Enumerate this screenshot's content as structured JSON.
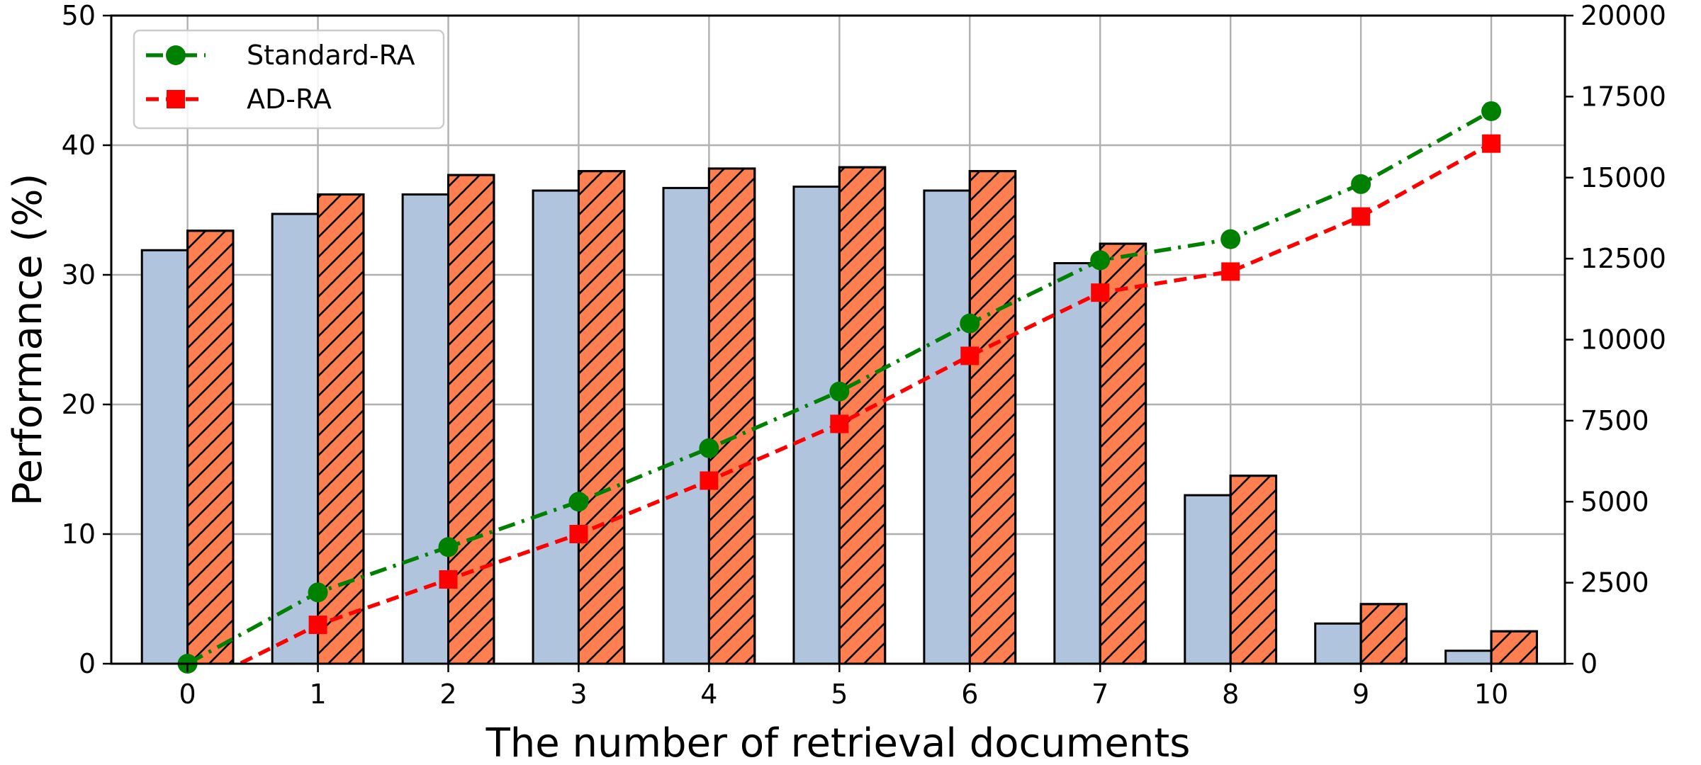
{
  "chart_data": {
    "type": "bar",
    "xlabel": "The number of retrieval documents",
    "ylabel": "Performance (%)",
    "categories": [
      "0",
      "1",
      "2",
      "3",
      "4",
      "5",
      "6",
      "7",
      "8",
      "9",
      "10"
    ],
    "ylim": [
      0,
      50
    ],
    "y_ticks": [
      "0",
      "10",
      "20",
      "30",
      "40",
      "50"
    ],
    "y2lim": [
      0,
      20000
    ],
    "y2_ticks": [
      "0",
      "2500",
      "5000",
      "7500",
      "10000",
      "12500",
      "15000",
      "17500",
      "20000"
    ],
    "grid": true,
    "legend_position": "top-left",
    "bar_series": [
      {
        "values": [
          31.9,
          34.7,
          36.2,
          36.5,
          36.7,
          36.8,
          36.5,
          30.9,
          13.0,
          3.1,
          1.0
        ],
        "color": "#b0c4de",
        "hatch": false
      },
      {
        "values": [
          33.4,
          36.2,
          37.7,
          38.0,
          38.2,
          38.3,
          38.0,
          32.4,
          14.5,
          4.6,
          2.5
        ],
        "color": "#ff7f50",
        "hatch": true
      }
    ],
    "line_series": [
      {
        "name": "Standard-RA",
        "axis": "right",
        "color": "#008000",
        "marker": "circle",
        "linestyle": "dashdot",
        "values": [
          0,
          2200,
          3600,
          5000,
          6650,
          8400,
          10500,
          12450,
          13100,
          14800,
          17050
        ]
      },
      {
        "name": "AD-RA",
        "axis": "right",
        "color": "#ff0000",
        "marker": "square",
        "linestyle": "dashed",
        "values": [
          -800,
          1200,
          2600,
          4000,
          5650,
          7400,
          9500,
          11450,
          12100,
          13800,
          16050
        ]
      }
    ]
  }
}
